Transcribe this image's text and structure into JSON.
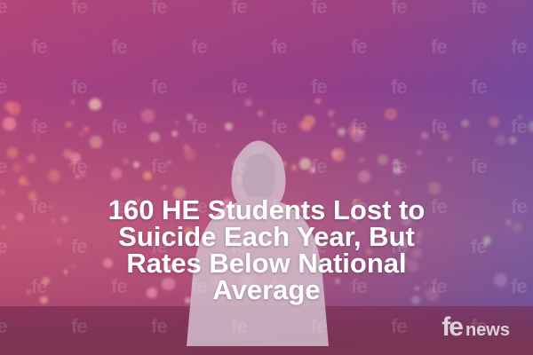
{
  "headline": {
    "lines": [
      "160 HE Students Lost to",
      "Suicide Each Year, But",
      "Rates Below National",
      "Average"
    ]
  },
  "logo": {
    "brand": "fe",
    "word": "news"
  },
  "watermark": {
    "text": "fe"
  },
  "colors": {
    "headline": "#ffffff",
    "overlay_pink": "#b0407a",
    "overlay_blue": "#3c5abe"
  }
}
